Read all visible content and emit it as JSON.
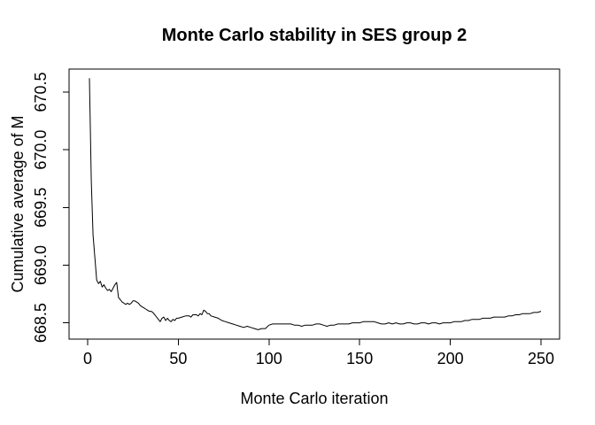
{
  "figure": {
    "background_color": "#ffffff",
    "line_color": "#000000",
    "box_color": "#000000",
    "text_color": "#000000"
  },
  "chart_data": {
    "type": "line",
    "title": "Monte Carlo stability in SES group 2",
    "xlabel": "Monte Carlo iteration",
    "ylabel": "Cumulative average of M",
    "xlim": [
      -10,
      260
    ],
    "ylim": [
      668.36,
      670.7
    ],
    "xticks": [
      0,
      50,
      100,
      150,
      200,
      250
    ],
    "yticks": [
      "668.5",
      "669.0",
      "669.5",
      "670.0",
      "670.5"
    ],
    "grid": false,
    "legend": null,
    "series": [
      {
        "name": "Cumulative average of M",
        "x": [
          1,
          2,
          3,
          4,
          5,
          6,
          7,
          8,
          9,
          10,
          11,
          12,
          13,
          14,
          15,
          16,
          17,
          18,
          19,
          20,
          21,
          22,
          23,
          24,
          25,
          26,
          27,
          28,
          29,
          30,
          31,
          32,
          33,
          34,
          35,
          36,
          37,
          38,
          39,
          40,
          41,
          42,
          43,
          44,
          45,
          46,
          47,
          48,
          49,
          50,
          52,
          54,
          56,
          57,
          58,
          60,
          61,
          62,
          63,
          64,
          65,
          66,
          67,
          68,
          70,
          72,
          74,
          76,
          78,
          80,
          82,
          84,
          86,
          88,
          90,
          92,
          94,
          96,
          98,
          100,
          102,
          104,
          106,
          108,
          110,
          112,
          114,
          116,
          118,
          120,
          122,
          124,
          126,
          128,
          130,
          132,
          134,
          136,
          138,
          140,
          142,
          144,
          146,
          148,
          150,
          152,
          154,
          156,
          158,
          160,
          162,
          164,
          166,
          168,
          170,
          172,
          174,
          176,
          178,
          180,
          182,
          184,
          186,
          188,
          190,
          192,
          194,
          196,
          198,
          200,
          202,
          204,
          206,
          208,
          210,
          212,
          214,
          216,
          218,
          220,
          222,
          224,
          226,
          228,
          230,
          232,
          234,
          236,
          238,
          240,
          242,
          244,
          246,
          248,
          250
        ],
        "y": [
          670.62,
          669.73,
          669.26,
          669.06,
          668.87,
          668.84,
          668.86,
          668.81,
          668.83,
          668.8,
          668.78,
          668.79,
          668.77,
          668.8,
          668.83,
          668.85,
          668.72,
          668.7,
          668.68,
          668.67,
          668.66,
          668.67,
          668.66,
          668.67,
          668.69,
          668.69,
          668.68,
          668.67,
          668.65,
          668.64,
          668.63,
          668.62,
          668.61,
          668.6,
          668.6,
          668.59,
          668.57,
          668.55,
          668.53,
          668.51,
          668.54,
          668.55,
          668.52,
          668.54,
          668.52,
          668.51,
          668.53,
          668.52,
          668.54,
          668.54,
          668.55,
          668.56,
          668.56,
          668.55,
          668.57,
          668.57,
          668.56,
          668.58,
          668.57,
          668.61,
          668.6,
          668.58,
          668.58,
          668.56,
          668.55,
          668.54,
          668.52,
          668.51,
          668.5,
          668.49,
          668.48,
          668.47,
          668.46,
          668.47,
          668.46,
          668.45,
          668.44,
          668.45,
          668.45,
          668.48,
          668.49,
          668.49,
          668.49,
          668.49,
          668.49,
          668.49,
          668.48,
          668.48,
          668.47,
          668.48,
          668.48,
          668.48,
          668.49,
          668.49,
          668.48,
          668.47,
          668.48,
          668.48,
          668.49,
          668.49,
          668.49,
          668.49,
          668.5,
          668.5,
          668.5,
          668.51,
          668.51,
          668.51,
          668.51,
          668.5,
          668.49,
          668.49,
          668.5,
          668.49,
          668.5,
          668.49,
          668.49,
          668.5,
          668.5,
          668.49,
          668.49,
          668.5,
          668.5,
          668.49,
          668.5,
          668.5,
          668.49,
          668.5,
          668.5,
          668.5,
          668.51,
          668.51,
          668.51,
          668.52,
          668.52,
          668.53,
          668.53,
          668.53,
          668.54,
          668.54,
          668.54,
          668.55,
          668.55,
          668.55,
          668.55,
          668.56,
          668.56,
          668.57,
          668.57,
          668.58,
          668.58,
          668.58,
          668.59,
          668.59,
          668.6
        ]
      }
    ]
  }
}
